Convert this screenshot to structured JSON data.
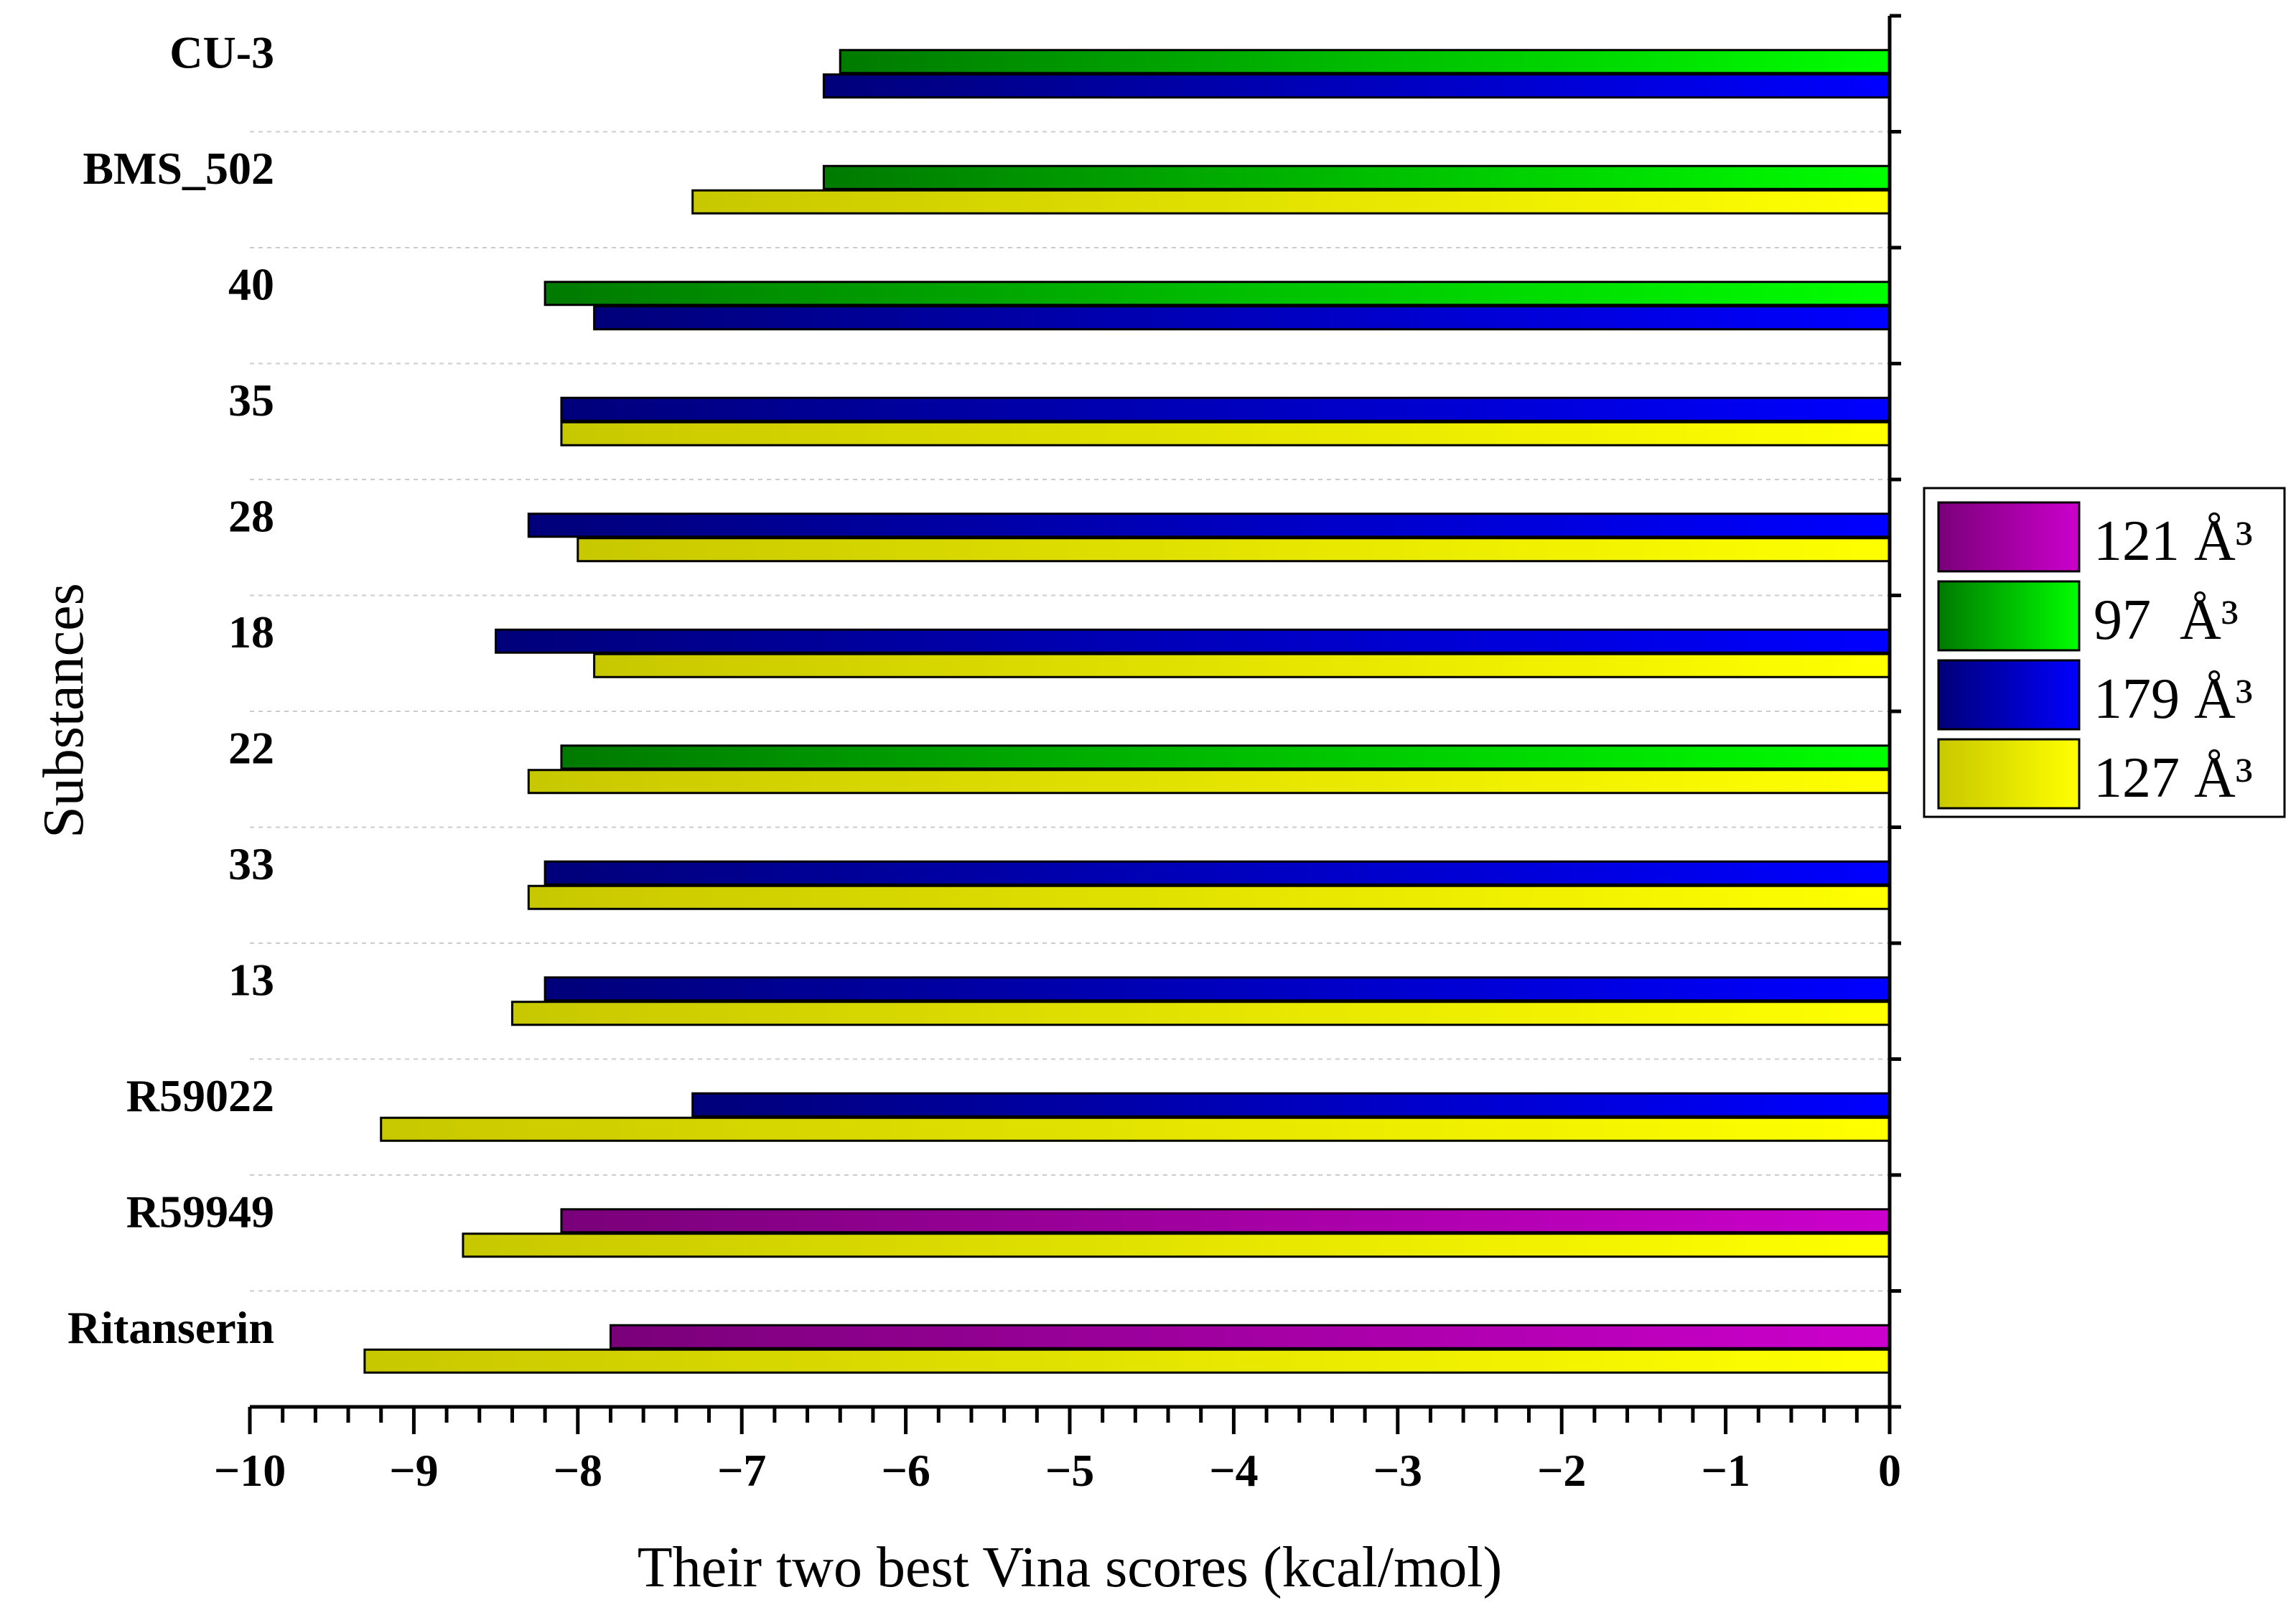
{
  "chart_data": {
    "type": "bar",
    "orientation": "horizontal",
    "xlabel": "Their two best Vina scores (kcal/mol)",
    "ylabel": "Substances",
    "xlim": [
      -10,
      0
    ],
    "xticks": [
      "−10",
      "−9",
      "−8",
      "−7",
      "−6",
      "−5",
      "−4",
      "−3",
      "−2",
      "−1",
      "0"
    ],
    "xtick_values": [
      -10,
      -9,
      -8,
      -7,
      -6,
      -5,
      -4,
      -3,
      -2,
      -1,
      0
    ],
    "categories": [
      "CU-3",
      "BMS_502",
      "40",
      "35",
      "28",
      "18",
      "22",
      "33",
      "13",
      "R59022",
      "R59949",
      "Ritanserin"
    ],
    "bars": [
      [
        {
          "series": "97  Å³",
          "value": -6.4
        },
        {
          "series": "179 Å³",
          "value": -6.5
        }
      ],
      [
        {
          "series": "97  Å³",
          "value": -6.5
        },
        {
          "series": "127 Å³",
          "value": -7.3
        }
      ],
      [
        {
          "series": "97  Å³",
          "value": -8.2
        },
        {
          "series": "179 Å³",
          "value": -7.9
        }
      ],
      [
        {
          "series": "179 Å³",
          "value": -8.1
        },
        {
          "series": "127 Å³",
          "value": -8.1
        }
      ],
      [
        {
          "series": "179 Å³",
          "value": -8.3
        },
        {
          "series": "127 Å³",
          "value": -8.0
        }
      ],
      [
        {
          "series": "179 Å³",
          "value": -8.5
        },
        {
          "series": "127 Å³",
          "value": -7.9
        }
      ],
      [
        {
          "series": "97  Å³",
          "value": -8.1
        },
        {
          "series": "127 Å³",
          "value": -8.3
        }
      ],
      [
        {
          "series": "179 Å³",
          "value": -8.2
        },
        {
          "series": "127 Å³",
          "value": -8.3
        }
      ],
      [
        {
          "series": "179 Å³",
          "value": -8.2
        },
        {
          "series": "127 Å³",
          "value": -8.4
        }
      ],
      [
        {
          "series": "179 Å³",
          "value": -7.3
        },
        {
          "series": "127 Å³",
          "value": -9.2
        }
      ],
      [
        {
          "series": "121 Å³",
          "value": -8.1
        },
        {
          "series": "127 Å³",
          "value": -8.7
        }
      ],
      [
        {
          "series": "121 Å³",
          "value": -7.8
        },
        {
          "series": "127 Å³",
          "value": -9.3
        }
      ]
    ],
    "legend": [
      {
        "name": "121 Å³",
        "color_dark": "#7a007a",
        "color_light": "#cc00cc"
      },
      {
        "name": "97  Å³",
        "color_dark": "#007a00",
        "color_light": "#00ff00"
      },
      {
        "name": "179 Å³",
        "color_dark": "#00007a",
        "color_light": "#0000ff"
      },
      {
        "name": "127 Å³",
        "color_dark": "#c8c800",
        "color_light": "#ffff00"
      }
    ],
    "legend_position": "right"
  }
}
